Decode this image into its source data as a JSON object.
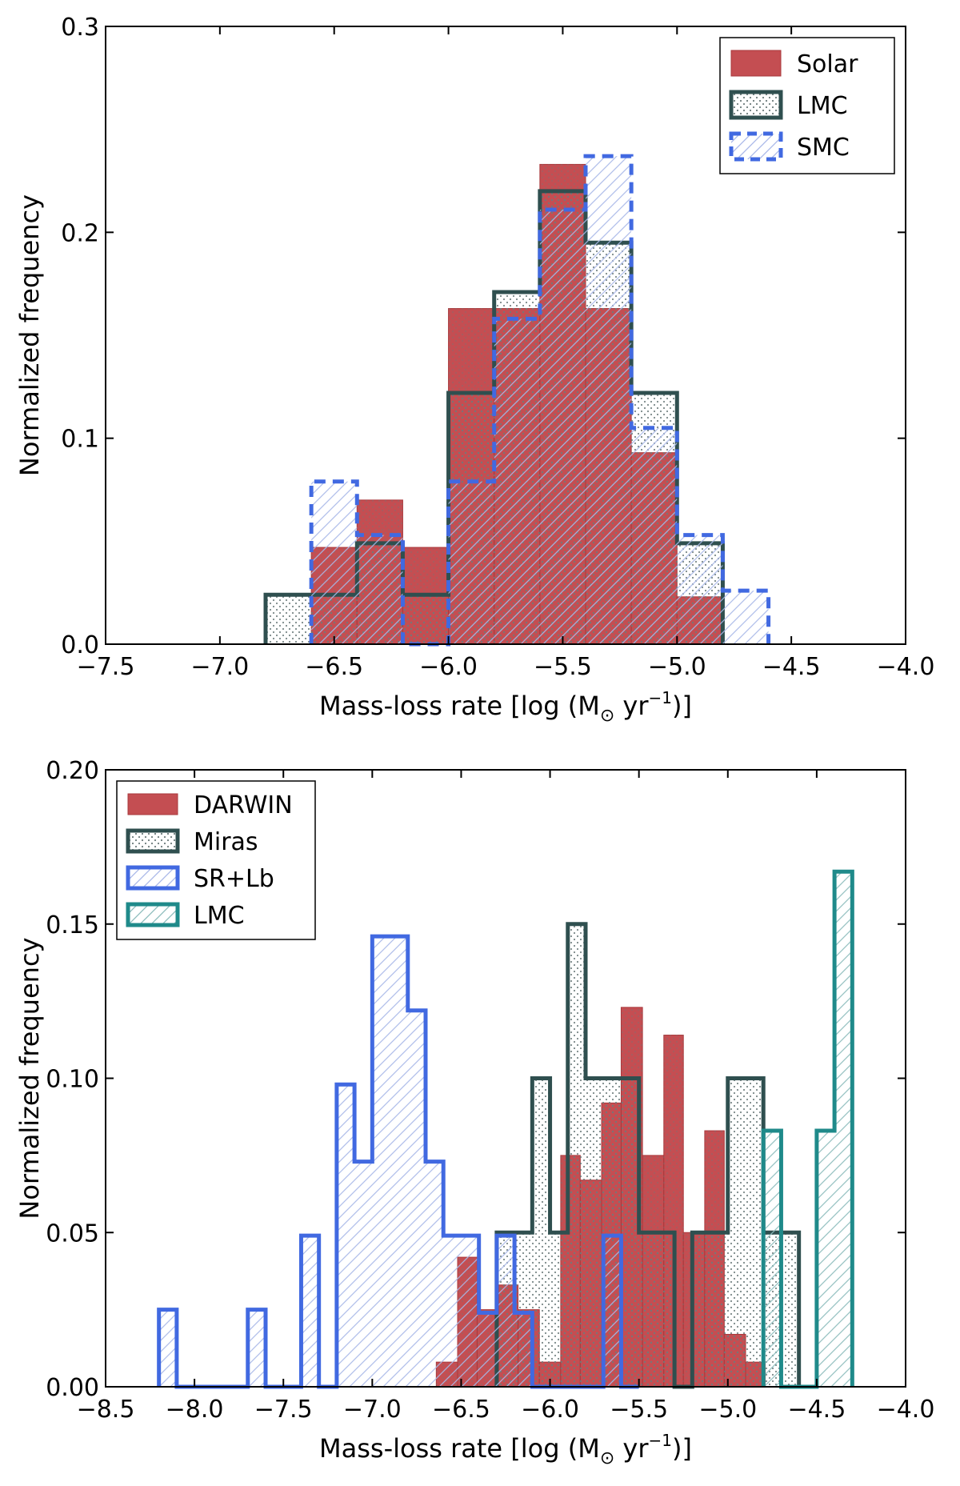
{
  "colors": {
    "solar": "#c44e52",
    "solar_edge": "#a9393c",
    "lmc_edge": "#2f4f4f",
    "smc_edge": "#4169e1",
    "lmc2_edge": "#1f8a8a",
    "hatch_dots": "#6c7b7b",
    "hatch_blue": "#9fb0e8"
  },
  "chart_data": [
    {
      "type": "histogram",
      "xlabel": "Mass-loss rate [log (M",
      "xlabel_sun": "⊙",
      "xlabel_unit": " yr",
      "xlabel_exp": "−1",
      "xlabel_close": ")]",
      "ylabel": "Normalized frequency",
      "xlim": [
        -7.5,
        -4.0
      ],
      "ylim": [
        0,
        0.3
      ],
      "xticks": [
        -7.5,
        -7.0,
        -6.5,
        -6.0,
        -5.5,
        -5.0,
        -4.5,
        -4.0
      ],
      "xtick_labels": [
        "−7.5",
        "−7.0",
        "−6.5",
        "−6.0",
        "−5.5",
        "−5.0",
        "−4.5",
        "−4.0"
      ],
      "yticks": [
        0.0,
        0.1,
        0.2,
        0.3
      ],
      "ytick_labels": [
        "0.0",
        "0.1",
        "0.2",
        "0.3"
      ],
      "legend_position": "top-right",
      "series": [
        {
          "name": "Solar",
          "style": "filled",
          "color": "solar",
          "edges": [
            -6.6,
            -6.4,
            -6.2,
            -6.0,
            -5.8,
            -5.6,
            -5.4,
            -5.2,
            -5.0,
            -4.8
          ],
          "values": [
            0.047,
            0.07,
            0.047,
            0.163,
            0.163,
            0.233,
            0.163,
            0.093,
            0.023
          ]
        },
        {
          "name": "LMC",
          "style": "step-dots",
          "color": "lmc_edge",
          "edges": [
            -6.8,
            -6.6,
            -6.4,
            -6.2,
            -6.0,
            -5.8,
            -5.6,
            -5.4,
            -5.2,
            -5.0,
            -4.8
          ],
          "values": [
            0.024,
            0.024,
            0.049,
            0.024,
            0.122,
            0.171,
            0.22,
            0.195,
            0.122,
            0.049
          ]
        },
        {
          "name": "SMC",
          "style": "step-dashed-hatch",
          "color": "smc_edge",
          "edges": [
            -6.6,
            -6.4,
            -6.2,
            -6.0,
            -5.8,
            -5.6,
            -5.4,
            -5.2,
            -5.0,
            -4.8,
            -4.6
          ],
          "values": [
            0.079,
            0.053,
            0.0,
            0.079,
            0.158,
            0.211,
            0.237,
            0.105,
            0.053,
            0.026
          ]
        }
      ]
    },
    {
      "type": "histogram",
      "xlabel": "Mass-loss rate [log (M",
      "xlabel_sun": "⊙",
      "xlabel_unit": " yr",
      "xlabel_exp": "−1",
      "xlabel_close": ")]",
      "ylabel": "Normalized frequency",
      "xlim": [
        -8.5,
        -4.0
      ],
      "ylim": [
        0,
        0.2
      ],
      "xticks": [
        -8.5,
        -8.0,
        -7.5,
        -7.0,
        -6.5,
        -6.0,
        -5.5,
        -5.0,
        -4.5,
        -4.0
      ],
      "xtick_labels": [
        "−8.5",
        "−8.0",
        "−7.5",
        "−7.0",
        "−6.5",
        "−6.0",
        "−5.5",
        "−5.0",
        "−4.5",
        "−4.0"
      ],
      "yticks": [
        0.0,
        0.05,
        0.1,
        0.15,
        0.2
      ],
      "ytick_labels": [
        "0.00",
        "0.05",
        "0.10",
        "0.15",
        "0.20"
      ],
      "legend_position": "top-left",
      "series": [
        {
          "name": "DARWIN",
          "style": "filled",
          "color": "solar",
          "edges": [
            -6.64,
            -6.52,
            -6.41,
            -6.29,
            -6.18,
            -6.06,
            -5.94,
            -5.83,
            -5.71,
            -5.6,
            -5.48,
            -5.36,
            -5.25,
            -5.13,
            -5.02,
            -4.9,
            -4.79
          ],
          "values": [
            0.008,
            0.042,
            0.025,
            0.033,
            0.025,
            0.008,
            0.075,
            0.067,
            0.092,
            0.123,
            0.075,
            0.114,
            0.05,
            0.083,
            0.017,
            0.008
          ]
        },
        {
          "name": "Miras",
          "style": "step-dots",
          "color": "lmc_edge",
          "edges": [
            -6.3,
            -6.2,
            -6.1,
            -6.0,
            -5.9,
            -5.8,
            -5.7,
            -5.6,
            -5.5,
            -5.4,
            -5.3,
            -5.2,
            -5.1,
            -5.0,
            -4.9,
            -4.8,
            -4.7,
            -4.6
          ],
          "values": [
            0.05,
            0.05,
            0.1,
            0.05,
            0.15,
            0.1,
            0.1,
            0.1,
            0.05,
            0.05,
            0.0,
            0.05,
            0.05,
            0.1,
            0.1,
            0.05,
            0.05
          ]
        },
        {
          "name": "SR+Lb",
          "style": "step-hatch",
          "color": "smc_edge",
          "edges": [
            -8.2,
            -8.1,
            -8.0,
            -7.9,
            -7.8,
            -7.7,
            -7.6,
            -7.5,
            -7.4,
            -7.3,
            -7.2,
            -7.1,
            -7.0,
            -6.9,
            -6.8,
            -6.7,
            -6.6,
            -6.5,
            -6.4,
            -6.3,
            -6.2,
            -6.1,
            -6.0,
            -5.9,
            -5.8,
            -5.7,
            -5.6,
            -5.5
          ],
          "values": [
            0.025,
            0.0,
            0.0,
            0.0,
            0.0,
            0.025,
            0.0,
            0.0,
            0.049,
            0.0,
            0.098,
            0.073,
            0.146,
            0.146,
            0.122,
            0.073,
            0.049,
            0.049,
            0.024,
            0.049,
            0.024,
            0.0,
            0.0,
            0.0,
            0.0,
            0.049,
            0.0
          ]
        },
        {
          "name": "LMC",
          "style": "step-hatch",
          "color": "lmc2_edge",
          "edges": [
            -4.8,
            -4.7,
            -4.6,
            -4.5,
            -4.4,
            -4.3
          ],
          "values": [
            0.083,
            0.0,
            0.0,
            0.083,
            0.167
          ]
        }
      ]
    }
  ]
}
